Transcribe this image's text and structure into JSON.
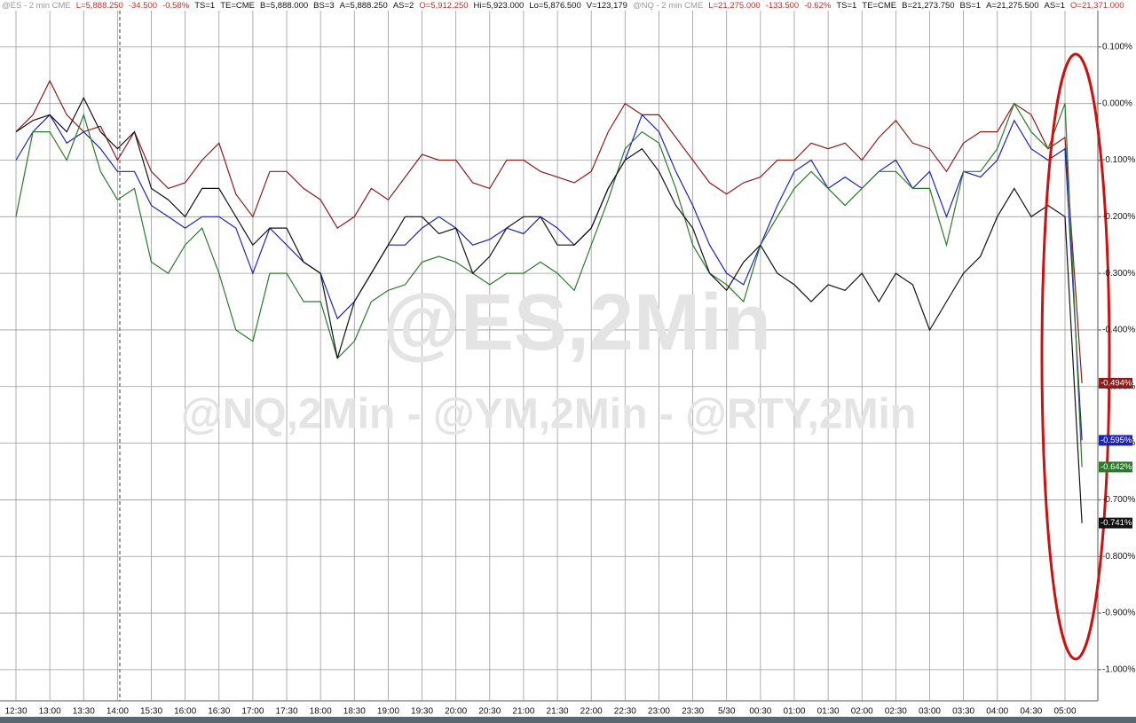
{
  "chart_data": {
    "type": "line",
    "header": [
      {
        "text": "@ES - 2 min  CME",
        "color": "#9a9a9a"
      },
      {
        "text": "L=5,888.250",
        "color": "#c0302a"
      },
      {
        "text": "-34.500",
        "color": "#c0302a"
      },
      {
        "text": "-0.58%",
        "color": "#c0302a"
      },
      {
        "text": "TS=1",
        "color": "#111111"
      },
      {
        "text": "TE=CME",
        "color": "#111111"
      },
      {
        "text": "B=5,888.000",
        "color": "#111111"
      },
      {
        "text": "BS=3",
        "color": "#111111"
      },
      {
        "text": "A=5,888.250",
        "color": "#111111"
      },
      {
        "text": "AS=2",
        "color": "#111111"
      },
      {
        "text": "O=5,912.250",
        "color": "#c0302a"
      },
      {
        "text": "Hi=5,923.000",
        "color": "#111111"
      },
      {
        "text": "Lo=5,876.500",
        "color": "#111111"
      },
      {
        "text": "V=123,179",
        "color": "#111111"
      },
      {
        "text": "@NQ - 2 min  CME",
        "color": "#9a9a9a"
      },
      {
        "text": "L=21,275.000",
        "color": "#c0302a"
      },
      {
        "text": "-133.500",
        "color": "#c0302a"
      },
      {
        "text": "-0.62%",
        "color": "#c0302a"
      },
      {
        "text": "TS=1",
        "color": "#111111"
      },
      {
        "text": "TE=CME",
        "color": "#111111"
      },
      {
        "text": "B=21,273.750",
        "color": "#111111"
      },
      {
        "text": "BS=1",
        "color": "#111111"
      },
      {
        "text": "A=21,275.500",
        "color": "#111111"
      },
      {
        "text": "AS=1",
        "color": "#111111"
      },
      {
        "text": "O=21,371.000",
        "color": "#c0302a"
      }
    ],
    "watermarks": [
      "@ES,2Min",
      "@NQ,2Min - @YM,2Min - @RTY,2Min"
    ],
    "categories": [
      "12:30",
      null,
      "13:00",
      null,
      "13:30",
      null,
      "14:00",
      null,
      "15:30",
      null,
      "16:00",
      null,
      "16:30",
      null,
      "17:00",
      null,
      "17:30",
      null,
      "18:00",
      null,
      "18:30",
      null,
      "19:00",
      null,
      "19:30",
      null,
      "20:00",
      null,
      "20:30",
      null,
      "21:00",
      null,
      "21:30",
      null,
      "22:00",
      null,
      "22:30",
      null,
      "23:00",
      null,
      "23:30",
      null,
      "5/30",
      null,
      "00:30",
      null,
      "01:00",
      null,
      "01:30",
      null,
      "02:00",
      null,
      "02:30",
      null,
      "03:00",
      null,
      "03:30",
      null,
      "04:00",
      null,
      "04:30",
      null,
      "05:00",
      null
    ],
    "series": [
      {
        "color": "#8b1c1c",
        "end_label": "-0.494%",
        "values": [
          -0.05,
          -0.02,
          0.04,
          -0.02,
          -0.05,
          -0.04,
          -0.1,
          -0.05,
          -0.12,
          -0.15,
          -0.14,
          -0.1,
          -0.07,
          -0.16,
          -0.2,
          -0.12,
          -0.12,
          -0.15,
          -0.17,
          -0.22,
          -0.2,
          -0.15,
          -0.17,
          -0.13,
          -0.09,
          -0.1,
          -0.1,
          -0.14,
          -0.15,
          -0.1,
          -0.1,
          -0.12,
          -0.13,
          -0.14,
          -0.12,
          -0.05,
          0.0,
          -0.02,
          -0.02,
          -0.06,
          -0.1,
          -0.14,
          -0.16,
          -0.14,
          -0.13,
          -0.1,
          -0.1,
          -0.07,
          -0.08,
          -0.07,
          -0.1,
          -0.06,
          -0.03,
          -0.07,
          -0.08,
          -0.12,
          -0.07,
          -0.05,
          -0.05,
          0.0,
          -0.02,
          -0.08,
          -0.06,
          -0.494
        ]
      },
      {
        "color": "#1c23b0",
        "end_label": "-0.595%",
        "values": [
          -0.1,
          -0.05,
          -0.02,
          -0.07,
          -0.05,
          -0.08,
          -0.12,
          -0.12,
          -0.18,
          -0.2,
          -0.22,
          -0.2,
          -0.2,
          -0.22,
          -0.3,
          -0.22,
          -0.25,
          -0.28,
          -0.3,
          -0.38,
          -0.35,
          -0.3,
          -0.25,
          -0.25,
          -0.22,
          -0.2,
          -0.22,
          -0.25,
          -0.24,
          -0.22,
          -0.23,
          -0.2,
          -0.22,
          -0.25,
          -0.22,
          -0.15,
          -0.1,
          -0.02,
          -0.05,
          -0.12,
          -0.18,
          -0.25,
          -0.3,
          -0.32,
          -0.25,
          -0.18,
          -0.12,
          -0.1,
          -0.15,
          -0.13,
          -0.15,
          -0.12,
          -0.1,
          -0.15,
          -0.12,
          -0.2,
          -0.12,
          -0.13,
          -0.1,
          -0.03,
          -0.08,
          -0.1,
          -0.08,
          -0.595
        ]
      },
      {
        "color": "#2a7a2a",
        "end_label": "-0.642%",
        "values": [
          -0.2,
          -0.05,
          -0.05,
          -0.1,
          -0.02,
          -0.12,
          -0.17,
          -0.15,
          -0.28,
          -0.3,
          -0.25,
          -0.22,
          -0.3,
          -0.4,
          -0.42,
          -0.3,
          -0.3,
          -0.35,
          -0.35,
          -0.45,
          -0.42,
          -0.35,
          -0.33,
          -0.32,
          -0.28,
          -0.27,
          -0.28,
          -0.3,
          -0.32,
          -0.3,
          -0.3,
          -0.28,
          -0.3,
          -0.33,
          -0.25,
          -0.17,
          -0.08,
          -0.05,
          -0.07,
          -0.15,
          -0.25,
          -0.3,
          -0.32,
          -0.35,
          -0.25,
          -0.2,
          -0.15,
          -0.12,
          -0.15,
          -0.18,
          -0.15,
          -0.12,
          -0.12,
          -0.15,
          -0.15,
          -0.25,
          -0.12,
          -0.12,
          -0.08,
          0.0,
          -0.05,
          -0.08,
          0.0,
          -0.642
        ]
      },
      {
        "color": "#111111",
        "end_label": "-0.741%",
        "values": [
          -0.05,
          -0.03,
          -0.02,
          -0.05,
          0.01,
          -0.05,
          -0.08,
          -0.05,
          -0.15,
          -0.17,
          -0.2,
          -0.15,
          -0.15,
          -0.2,
          -0.25,
          -0.22,
          -0.22,
          -0.28,
          -0.3,
          -0.45,
          -0.35,
          -0.3,
          -0.25,
          -0.2,
          -0.2,
          -0.23,
          -0.22,
          -0.3,
          -0.27,
          -0.22,
          -0.2,
          -0.2,
          -0.25,
          -0.25,
          -0.22,
          -0.15,
          -0.1,
          -0.08,
          -0.12,
          -0.18,
          -0.22,
          -0.3,
          -0.33,
          -0.28,
          -0.25,
          -0.3,
          -0.32,
          -0.35,
          -0.32,
          -0.33,
          -0.3,
          -0.35,
          -0.3,
          -0.32,
          -0.4,
          -0.35,
          -0.3,
          -0.27,
          -0.2,
          -0.15,
          -0.2,
          -0.18,
          -0.2,
          -0.741
        ]
      }
    ],
    "ylim": [
      -1.055,
      0.164
    ],
    "yticks": [
      {
        "value": 0.1,
        "label": "0.100%"
      },
      {
        "value": 0,
        "label": "0.000%"
      },
      {
        "value": -0.1,
        "label": "-0.100%"
      },
      {
        "value": -0.2,
        "label": "-0.200%"
      },
      {
        "value": -0.3,
        "label": "-0.300%"
      },
      {
        "value": -0.4,
        "label": "-0.400%"
      },
      {
        "value": -0.5,
        "label": "-0.500%"
      },
      {
        "value": -0.6,
        "label": "-0.600%"
      },
      {
        "value": -0.7,
        "label": "-0.700%"
      },
      {
        "value": -0.8,
        "label": "-0.800%"
      },
      {
        "value": -0.9,
        "label": "-0.900%"
      },
      {
        "value": -1,
        "label": "-1.000%"
      }
    ],
    "grid": true
  }
}
